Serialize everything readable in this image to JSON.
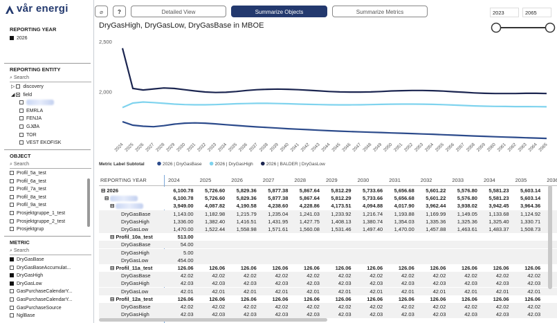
{
  "header": {
    "logo": "vår energi",
    "buttons": [
      {
        "label": "Detailed View",
        "active": false
      },
      {
        "label": "Summarize Objects",
        "active": true
      },
      {
        "label": "Summarize Metrics",
        "active": false
      }
    ],
    "year_from": "2023",
    "year_to": "2065"
  },
  "sidebar": {
    "sections": [
      {
        "title": "REPORTING YEAR",
        "items": [
          {
            "label": "2026",
            "state": "on"
          }
        ]
      },
      {
        "title": "REPORTING ENTITY",
        "search": "Search",
        "items": [
          {
            "label": "discovery",
            "state": "off",
            "expand": "closed"
          },
          {
            "label": "field",
            "state": "partial",
            "expand": "open"
          },
          {
            "state": "off",
            "indent": true
          },
          {
            "label": "EMRLA",
            "state": "off",
            "indent": true
          },
          {
            "label": "FENJA",
            "state": "off",
            "indent": true
          },
          {
            "label": "GJØA",
            "state": "off",
            "indent": true
          },
          {
            "label": "TOR",
            "state": "off",
            "indent": true
          },
          {
            "label": "VEST EKOFISK",
            "state": "off",
            "indent": true
          }
        ]
      },
      {
        "title": "OBJECT",
        "search": "Search",
        "items": [
          {
            "label": "Profil_5a_test",
            "state": "off"
          },
          {
            "label": "Profil_6a_test",
            "state": "off"
          },
          {
            "label": "Profil_7a_test",
            "state": "off"
          },
          {
            "label": "Profil_8a_test",
            "state": "off"
          },
          {
            "label": "Profil_9a_test",
            "state": "off"
          },
          {
            "label": "Prosjektgruppe_1_test",
            "state": "off"
          },
          {
            "label": "Prosjektgruppe_2_test",
            "state": "off"
          },
          {
            "label": "Prosjektgrup",
            "state": "off"
          }
        ]
      },
      {
        "title": "METRIC",
        "search": "Search",
        "items": [
          {
            "label": "DryGasBase",
            "state": "on"
          },
          {
            "label": "DryGasBaseAccumulat...",
            "state": "off"
          },
          {
            "label": "DryGasHigh",
            "state": "on"
          },
          {
            "label": "DryGasLow",
            "state": "on"
          },
          {
            "label": "GasPurchaseCalendarY...",
            "state": "off"
          },
          {
            "label": "GasPurchaseCalendarY...",
            "state": "off"
          },
          {
            "label": "GasPurchaseSource",
            "state": "off"
          },
          {
            "label": "NglBase",
            "state": "off"
          }
        ]
      }
    ]
  },
  "chart_data": {
    "type": "line",
    "title": "DryGasHigh, DryGasLow, DryGasBase in MBOE",
    "legend_title": "Metric Label Subtotal",
    "x": [
      2024,
      2025,
      2026,
      2027,
      2028,
      2029,
      2030,
      2031,
      2032,
      2033,
      2034,
      2035,
      2036,
      2037,
      2038,
      2039,
      2040,
      2041,
      2042,
      2043,
      2044,
      2045,
      2046,
      2047,
      2048,
      2049,
      2050,
      2051,
      2052,
      2053,
      2054,
      2055,
      2056,
      2057,
      2058,
      2059,
      2060,
      2061,
      2062,
      2063,
      2064,
      2065
    ],
    "xlim": [
      2024,
      2065
    ],
    "ylim": [
      1550,
      2650
    ],
    "yticks": [
      {
        "value": 2000,
        "label": "2,000"
      },
      {
        "value": 2500,
        "label": "2,500"
      }
    ],
    "grid": false,
    "series": [
      {
        "name": "2026 | DryGasBase",
        "color": "#2b4a8b",
        "values": [
          1750,
          1715,
          1705,
          1700,
          1710,
          1725,
          1735,
          1738,
          1735,
          1728,
          1720,
          1712,
          1705,
          1698,
          1692,
          1686,
          1680,
          1675,
          1670,
          1665,
          1660,
          1656,
          1652,
          1648,
          1645,
          1642,
          1638,
          1635,
          1632,
          1628,
          1625,
          1620,
          1616,
          1612,
          1608,
          1604,
          1600,
          1597,
          1594,
          1590,
          1587,
          1584
        ]
      },
      {
        "name": "2026 | DryGasHigh",
        "color": "#7fd3ee",
        "values": [
          1890,
          1935,
          1945,
          1940,
          1932,
          1925,
          1920,
          1918,
          1918,
          1920,
          1924,
          1928,
          1930,
          1932,
          1932,
          1930,
          1928,
          1925,
          1922,
          1920,
          1918,
          1917,
          1917,
          1918,
          1920,
          1922,
          1924,
          1925,
          1925,
          1924,
          1922,
          1919,
          1915,
          1911,
          1907,
          1904,
          1902,
          1901,
          1900,
          1900,
          1899,
          1898
        ]
      },
      {
        "name": "2026 | BALDER | DryGasLow",
        "color": "#1b2550",
        "values": [
          2480,
          2080,
          2065,
          2075,
          2085,
          2080,
          2068,
          2055,
          2045,
          2040,
          2042,
          2050,
          2060,
          2068,
          2072,
          2074,
          2072,
          2068,
          2062,
          2056,
          2050,
          2046,
          2044,
          2044,
          2046,
          2050,
          2055,
          2058,
          2060,
          2060,
          2058,
          2054,
          2048,
          2042,
          2036,
          2032,
          2030,
          2030,
          2030,
          2032,
          2032,
          2030
        ]
      }
    ]
  },
  "table": {
    "corner": "REPORTING YEAR",
    "columns": [
      "2024",
      "2025",
      "2026",
      "2027",
      "2028",
      "2029",
      "2030",
      "2031",
      "2032",
      "2033",
      "2034",
      "2035",
      "2036"
    ],
    "rows": [
      {
        "label": "2026",
        "level": 0,
        "group": true,
        "cells": [
          "6,100.78",
          "5,726.60",
          "5,829.36",
          "5,877.38",
          "5,867.64",
          "5,812.29",
          "5,733.66",
          "5,656.68",
          "5,601.22",
          "5,576.80",
          "5,581.23",
          "5,603.14",
          "5,627"
        ]
      },
      {
        "level": 1,
        "group": true,
        "cells": [
          "6,100.78",
          "5,726.60",
          "5,829.36",
          "5,877.38",
          "5,867.64",
          "5,812.29",
          "5,733.66",
          "5,656.68",
          "5,601.22",
          "5,576.80",
          "5,581.23",
          "5,603.14",
          "5,627"
        ]
      },
      {
        "level": 2,
        "group": true,
        "cells": [
          "3,949.00",
          "4,087.82",
          "4,190.58",
          "4,238.60",
          "4,228.86",
          "4,173.51",
          "4,094.88",
          "4,017.90",
          "3,962.44",
          "3,938.02",
          "3,942.45",
          "3,964.36",
          "3,988"
        ]
      },
      {
        "label": "DryGasBase",
        "level": 3,
        "cells": [
          "1,143.00",
          "1,182.98",
          "1,215.79",
          "1,235.04",
          "1,241.03",
          "1,233.92",
          "1,216.74",
          "1,193.88",
          "1,169.99",
          "1,149.05",
          "1,133.68",
          "1,124.92",
          "1,122"
        ]
      },
      {
        "label": "DryGasHigh",
        "level": 3,
        "cells": [
          "1,336.00",
          "1,382.40",
          "1,416.51",
          "1,431.95",
          "1,427.75",
          "1,408.13",
          "1,380.74",
          "1,354.03",
          "1,335.36",
          "1,325.36",
          "1,325.40",
          "1,330.71",
          "1,336"
        ]
      },
      {
        "label": "DryGasLow",
        "level": 3,
        "cells": [
          "1,470.00",
          "1,522.44",
          "1,558.98",
          "1,571.61",
          "1,560.08",
          "1,531.46",
          "1,497.40",
          "1,470.00",
          "1,457.88",
          "1,463.61",
          "1,483.37",
          "1,508.73",
          "1,529"
        ]
      },
      {
        "label": "Profil_10a_test",
        "level": 2,
        "group": true,
        "cells": [
          "513.00"
        ]
      },
      {
        "label": "DryGasBase",
        "level": 3,
        "cells": [
          "54.00"
        ]
      },
      {
        "label": "DryGasHigh",
        "level": 3,
        "cells": [
          "5.00"
        ]
      },
      {
        "label": "DryGasLow",
        "level": 3,
        "cells": [
          "454.00"
        ]
      },
      {
        "label": "Profil_11a_test",
        "level": 2,
        "group": true,
        "cells": [
          "126.06",
          "126.06",
          "126.06",
          "126.06",
          "126.06",
          "126.06",
          "126.06",
          "126.06",
          "126.06",
          "126.06",
          "126.06",
          "126.06",
          "126."
        ]
      },
      {
        "label": "DryGasBase",
        "level": 3,
        "cells": [
          "42.02",
          "42.02",
          "42.02",
          "42.02",
          "42.02",
          "42.02",
          "42.02",
          "42.02",
          "42.02",
          "42.02",
          "42.02",
          "42.02",
          "42.0"
        ]
      },
      {
        "label": "DryGasHigh",
        "level": 3,
        "cells": [
          "42.03",
          "42.03",
          "42.03",
          "42.03",
          "42.03",
          "42.03",
          "42.03",
          "42.03",
          "42.03",
          "42.03",
          "42.03",
          "42.03",
          "42.0"
        ]
      },
      {
        "label": "DryGasLow",
        "level": 3,
        "cells": [
          "42.01",
          "42.01",
          "42.01",
          "42.01",
          "42.01",
          "42.01",
          "42.01",
          "42.01",
          "42.01",
          "42.01",
          "42.01",
          "42.01",
          "42.0"
        ]
      },
      {
        "label": "Profil_12a_test",
        "level": 2,
        "group": true,
        "cells": [
          "126.06",
          "126.06",
          "126.06",
          "126.06",
          "126.06",
          "126.06",
          "126.06",
          "126.06",
          "126.06",
          "126.06",
          "126.06",
          "126.06",
          "126."
        ]
      },
      {
        "label": "DryGasBase",
        "level": 3,
        "cells": [
          "42.02",
          "42.02",
          "42.02",
          "42.02",
          "42.02",
          "42.02",
          "42.02",
          "42.02",
          "42.02",
          "42.02",
          "42.02",
          "42.02",
          "42.0"
        ]
      },
      {
        "label": "DryGasHigh",
        "level": 3,
        "cells": [
          "42.03",
          "42.03",
          "42.03",
          "42.03",
          "42.03",
          "42.03",
          "42.03",
          "42.03",
          "42.03",
          "42.03",
          "42.03",
          "42.03",
          "42.0"
        ]
      }
    ]
  }
}
